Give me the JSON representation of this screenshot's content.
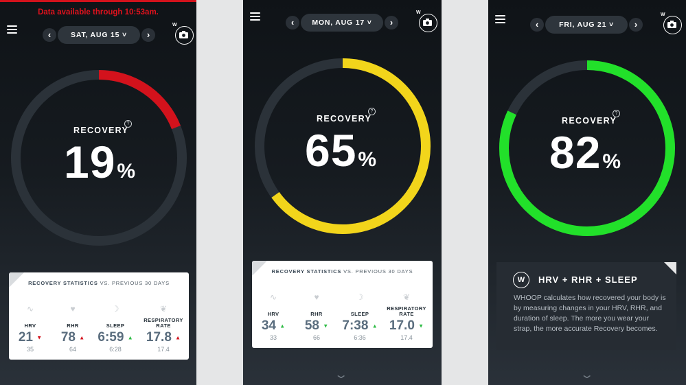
{
  "screens": [
    {
      "banner": "Data available through 10:53am.",
      "date": "SAT, AUG 15",
      "camera_letter": "W",
      "recovery_label": "RECOVERY",
      "help": "?",
      "recovery_value": "19",
      "recovery_pct": 0.19,
      "percent_sign": "%",
      "ring_color": "#d3121c",
      "stats_title_bold": "RECOVERY STATISTICS",
      "stats_title_rest": " VS. PREVIOUS 30 DAYS",
      "stats": [
        {
          "icon": "heartbeat-icon",
          "name": "HRV",
          "value": "21",
          "trend": "down",
          "trend_color": "red",
          "prev": "35"
        },
        {
          "icon": "heart-icon",
          "name": "RHR",
          "value": "78",
          "trend": "up",
          "trend_color": "red",
          "prev": "64"
        },
        {
          "icon": "moon-icon",
          "name": "SLEEP",
          "value": "6:59",
          "trend": "up",
          "trend_color": "green",
          "prev": "6:28"
        },
        {
          "icon": "lungs-icon",
          "name": "RESPIRATORY RATE",
          "value": "17.8",
          "trend": "up",
          "trend_color": "red",
          "prev": "17.4"
        }
      ]
    },
    {
      "date": "MON, AUG 17",
      "camera_letter": "W",
      "recovery_label": "RECOVERY",
      "help": "?",
      "recovery_value": "65",
      "recovery_pct": 0.65,
      "percent_sign": "%",
      "ring_color": "#f2d51b",
      "stats_title_bold": "RECOVERY STATISTICS",
      "stats_title_rest": " VS. PREVIOUS 30 DAYS",
      "stats": [
        {
          "icon": "heartbeat-icon",
          "name": "HRV",
          "value": "34",
          "trend": "up",
          "trend_color": "green",
          "prev": "33"
        },
        {
          "icon": "heart-icon",
          "name": "RHR",
          "value": "58",
          "trend": "down",
          "trend_color": "green",
          "prev": "66"
        },
        {
          "icon": "moon-icon",
          "name": "SLEEP",
          "value": "7:38",
          "trend": "up",
          "trend_color": "green",
          "prev": "6:36"
        },
        {
          "icon": "lungs-icon",
          "name": "RESPIRATORY RATE",
          "value": "17.0",
          "trend": "down",
          "trend_color": "green",
          "prev": "17.4"
        }
      ]
    },
    {
      "date": "FRI, AUG 21",
      "camera_letter": "W",
      "recovery_label": "RECOVERY",
      "help": "?",
      "recovery_value": "82",
      "recovery_pct": 0.82,
      "percent_sign": "%",
      "ring_color": "#22e02a",
      "info_logo": "W",
      "info_title": "HRV + RHR + SLEEP",
      "info_body": "WHOOP calculates how recovered your body is by measuring changes in your HRV, RHR, and duration of sleep. The more you wear your strap, the more accurate Recovery becomes."
    }
  ],
  "nav": {
    "prev": "‹",
    "next": "›",
    "dropdown": "⌄",
    "scroll_down": "⌄"
  }
}
